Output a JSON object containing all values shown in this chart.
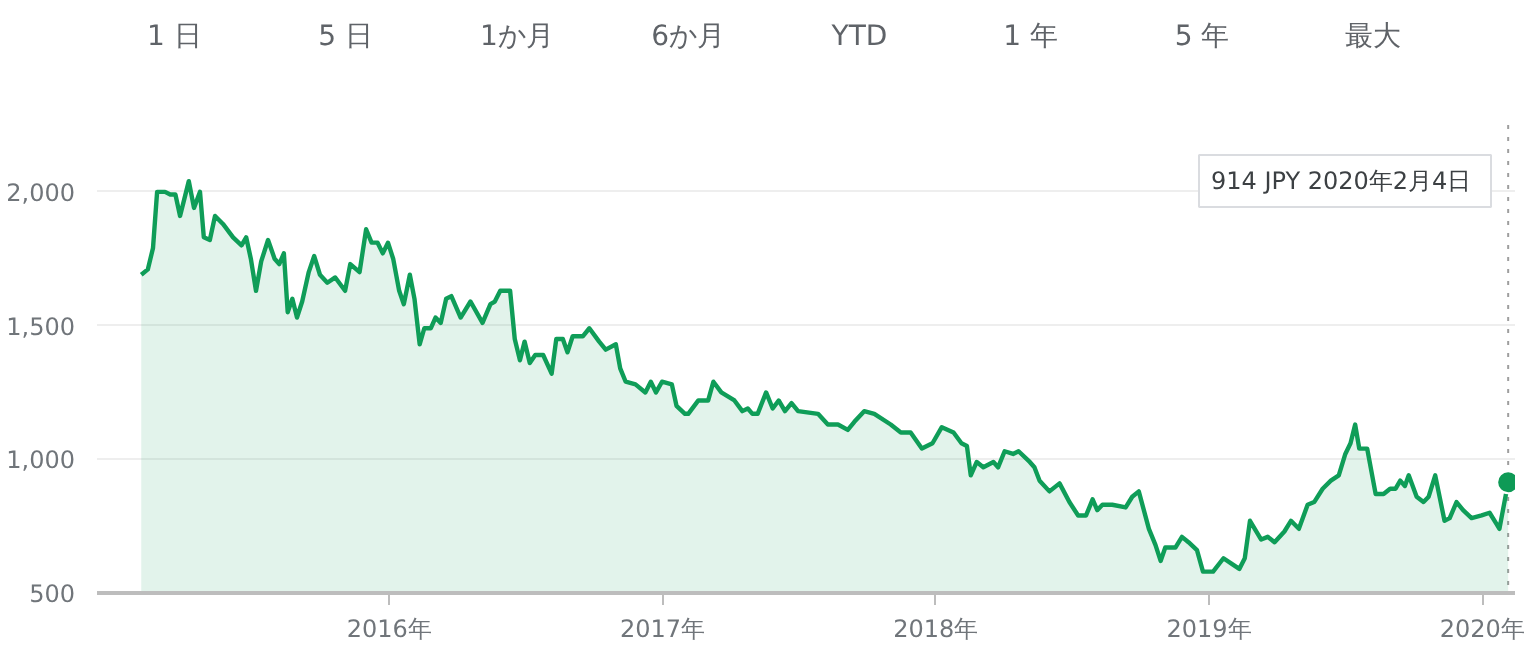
{
  "chart_data": {
    "type": "area",
    "xlim": [
      2014.93,
      2020.12
    ],
    "ylim": [
      500,
      2250
    ],
    "xticks": [
      {
        "value": 2016,
        "label": "2016年"
      },
      {
        "value": 2017,
        "label": "2017年"
      },
      {
        "value": 2018,
        "label": "2018年"
      },
      {
        "value": 2019,
        "label": "2019年"
      },
      {
        "value": 2020,
        "label": "2020年"
      }
    ],
    "yticks": [
      {
        "value": 500,
        "label": "500"
      },
      {
        "value": 1000,
        "label": "1,000"
      },
      {
        "value": 1500,
        "label": "1,500"
      },
      {
        "value": 2000,
        "label": "2,000"
      }
    ],
    "grid": "y",
    "series": [
      {
        "color": "#0f9d58",
        "x": [
          2015.092,
          2015.116,
          2015.135,
          2015.15,
          2015.179,
          2015.198,
          2015.217,
          2015.234,
          2015.266,
          2015.285,
          2015.307,
          2015.321,
          2015.343,
          2015.362,
          2015.391,
          2015.428,
          2015.459,
          2015.476,
          2015.493,
          2015.512,
          2015.531,
          2015.556,
          2015.58,
          2015.597,
          2015.614,
          2015.628,
          2015.645,
          2015.662,
          2015.681,
          2015.705,
          2015.725,
          2015.746,
          2015.773,
          2015.802,
          2015.838,
          2015.857,
          2015.891,
          2015.915,
          2015.935,
          2015.957,
          2015.976,
          2015.995,
          2016.014,
          2016.036,
          2016.053,
          2016.075,
          2016.092,
          2016.111,
          2016.128,
          2016.152,
          2016.169,
          2016.188,
          2016.208,
          2016.227,
          2016.261,
          2016.297,
          2016.341,
          2016.37,
          2016.386,
          2016.406,
          2016.442,
          2016.459,
          2016.478,
          2016.495,
          2016.514,
          2016.534,
          2016.563,
          2016.594,
          2016.611,
          2016.635,
          2016.652,
          2016.671,
          2016.708,
          2016.732,
          2016.768,
          2016.792,
          2016.829,
          2016.845,
          2016.865,
          2016.901,
          2016.937,
          2016.957,
          2016.976,
          2016.998,
          2017.034,
          2017.051,
          2017.082,
          2017.094,
          2017.131,
          2017.167,
          2017.186,
          2017.215,
          2017.263,
          2017.292,
          2017.312,
          2017.329,
          2017.348,
          2017.379,
          2017.403,
          2017.425,
          2017.448,
          2017.472,
          2017.496,
          2017.569,
          2017.605,
          2017.642,
          2017.678,
          2017.702,
          2017.738,
          2017.775,
          2017.835,
          2017.872,
          2017.908,
          2017.949,
          2017.988,
          2018.022,
          2018.065,
          2018.094,
          2018.114,
          2018.128,
          2018.15,
          2018.174,
          2018.211,
          2018.228,
          2018.252,
          2018.283,
          2018.303,
          2018.344,
          2018.361,
          2018.38,
          2018.416,
          2018.453,
          2018.489,
          2018.521,
          2018.55,
          2018.574,
          2018.591,
          2018.61,
          2018.646,
          2018.695,
          2018.719,
          2018.743,
          2018.78,
          2018.804,
          2018.823,
          2018.84,
          2018.877,
          2018.901,
          2018.925,
          2018.956,
          2018.978,
          2019.015,
          2019.053,
          2019.082,
          2019.111,
          2019.131,
          2019.15,
          2019.191,
          2019.215,
          2019.24,
          2019.276,
          2019.3,
          2019.329,
          2019.361,
          2019.385,
          2019.416,
          2019.446,
          2019.475,
          2019.499,
          2019.518,
          2019.535,
          2019.55,
          2019.579,
          2019.61,
          2019.639,
          2019.663,
          2019.683,
          2019.7,
          2019.717,
          2019.731,
          2019.76,
          2019.785,
          2019.804,
          2019.828,
          2019.862,
          2019.881,
          2019.906,
          2019.93,
          2019.961,
          2019.998,
          2020.027,
          2020.051,
          2020.063,
          2020.095
        ],
        "values": [
          1690,
          1710,
          1790,
          2000,
          2000,
          1990,
          1990,
          1910,
          2040,
          1940,
          2000,
          1830,
          1820,
          1910,
          1880,
          1830,
          1800,
          1830,
          1750,
          1630,
          1740,
          1820,
          1750,
          1730,
          1770,
          1550,
          1600,
          1530,
          1590,
          1700,
          1760,
          1690,
          1660,
          1680,
          1630,
          1730,
          1700,
          1860,
          1810,
          1810,
          1770,
          1810,
          1750,
          1630,
          1580,
          1690,
          1600,
          1430,
          1490,
          1490,
          1530,
          1510,
          1600,
          1610,
          1530,
          1590,
          1510,
          1580,
          1590,
          1630,
          1630,
          1450,
          1370,
          1440,
          1360,
          1390,
          1390,
          1320,
          1450,
          1450,
          1400,
          1460,
          1460,
          1490,
          1440,
          1410,
          1430,
          1340,
          1290,
          1280,
          1250,
          1290,
          1250,
          1290,
          1280,
          1200,
          1170,
          1170,
          1220,
          1220,
          1290,
          1250,
          1220,
          1180,
          1190,
          1170,
          1170,
          1250,
          1190,
          1220,
          1180,
          1210,
          1180,
          1170,
          1130,
          1130,
          1110,
          1140,
          1180,
          1170,
          1130,
          1100,
          1100,
          1040,
          1060,
          1120,
          1100,
          1060,
          1050,
          940,
          990,
          970,
          990,
          970,
          1030,
          1020,
          1030,
          990,
          970,
          920,
          880,
          910,
          840,
          790,
          790,
          850,
          810,
          830,
          830,
          820,
          860,
          880,
          740,
          680,
          620,
          670,
          670,
          710,
          690,
          660,
          580,
          580,
          630,
          610,
          590,
          630,
          770,
          700,
          710,
          690,
          730,
          770,
          740,
          830,
          840,
          890,
          920,
          940,
          1020,
          1060,
          1130,
          1040,
          1040,
          870,
          870,
          890,
          890,
          920,
          900,
          940,
          860,
          840,
          860,
          940,
          770,
          780,
          840,
          810,
          780,
          790,
          800,
          760,
          740,
          914
        ]
      },
      {
        "type": "scatter",
        "marker": "circle",
        "color": "#0e9a56",
        "x": [
          2020.095
        ],
        "values": [
          914
        ]
      }
    ],
    "ref_lines": [
      {
        "axis": "x",
        "value": 2020.095,
        "color": "#9e9e9e",
        "line_style": "dotted"
      }
    ],
    "annotations": [
      "1 日",
      "5 日",
      "1か月",
      "6か月",
      "YTD",
      "1 年",
      "5 年",
      "最大",
      "914 JPY  2020年2月4日"
    ]
  }
}
